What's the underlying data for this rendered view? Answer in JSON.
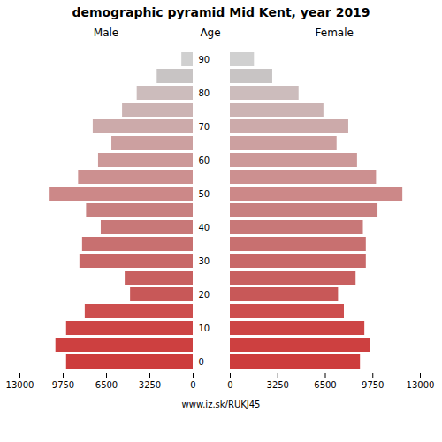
{
  "chart_data": {
    "type": "bar",
    "orientation": "horizontal",
    "title": "demographic pyramid Mid Kent, year 2019",
    "ylabel": "Age",
    "footnote": "www.iz.sk/RUKJ45",
    "categories": [
      "0",
      null,
      "10",
      null,
      "20",
      null,
      "30",
      null,
      "40",
      null,
      "50",
      null,
      "60",
      null,
      "70",
      null,
      "80",
      null,
      "90"
    ],
    "series": [
      {
        "name": "Male",
        "values": [
          9500,
          10300,
          9500,
          8100,
          4700,
          5100,
          8500,
          8300,
          6900,
          8000,
          10800,
          8600,
          7100,
          6100,
          7500,
          5300,
          4200,
          2700,
          850
        ]
      },
      {
        "name": "Female",
        "values": [
          8900,
          9600,
          9200,
          7800,
          7400,
          8600,
          9300,
          9300,
          9100,
          10100,
          11800,
          10000,
          8700,
          7300,
          8100,
          6400,
          4700,
          2900,
          1650
        ]
      }
    ],
    "colors": [
      "#cd3c3c",
      "#cd4040",
      "#cd4545",
      "#cd4e4e",
      "#c85858",
      "#c86060",
      "#c86868",
      "#c87070",
      "#c87878",
      "#c88080",
      "#cc8888",
      "#cc9090",
      "#cc9898",
      "#cca0a0",
      "#ccaaaa",
      "#ccb4b4",
      "#ccbcbc",
      "#c8c4c4",
      "#d0d0d0"
    ],
    "xlim": [
      0,
      13000
    ],
    "xticks": [
      0,
      3250,
      6500,
      9750,
      13000
    ],
    "grid": false
  }
}
